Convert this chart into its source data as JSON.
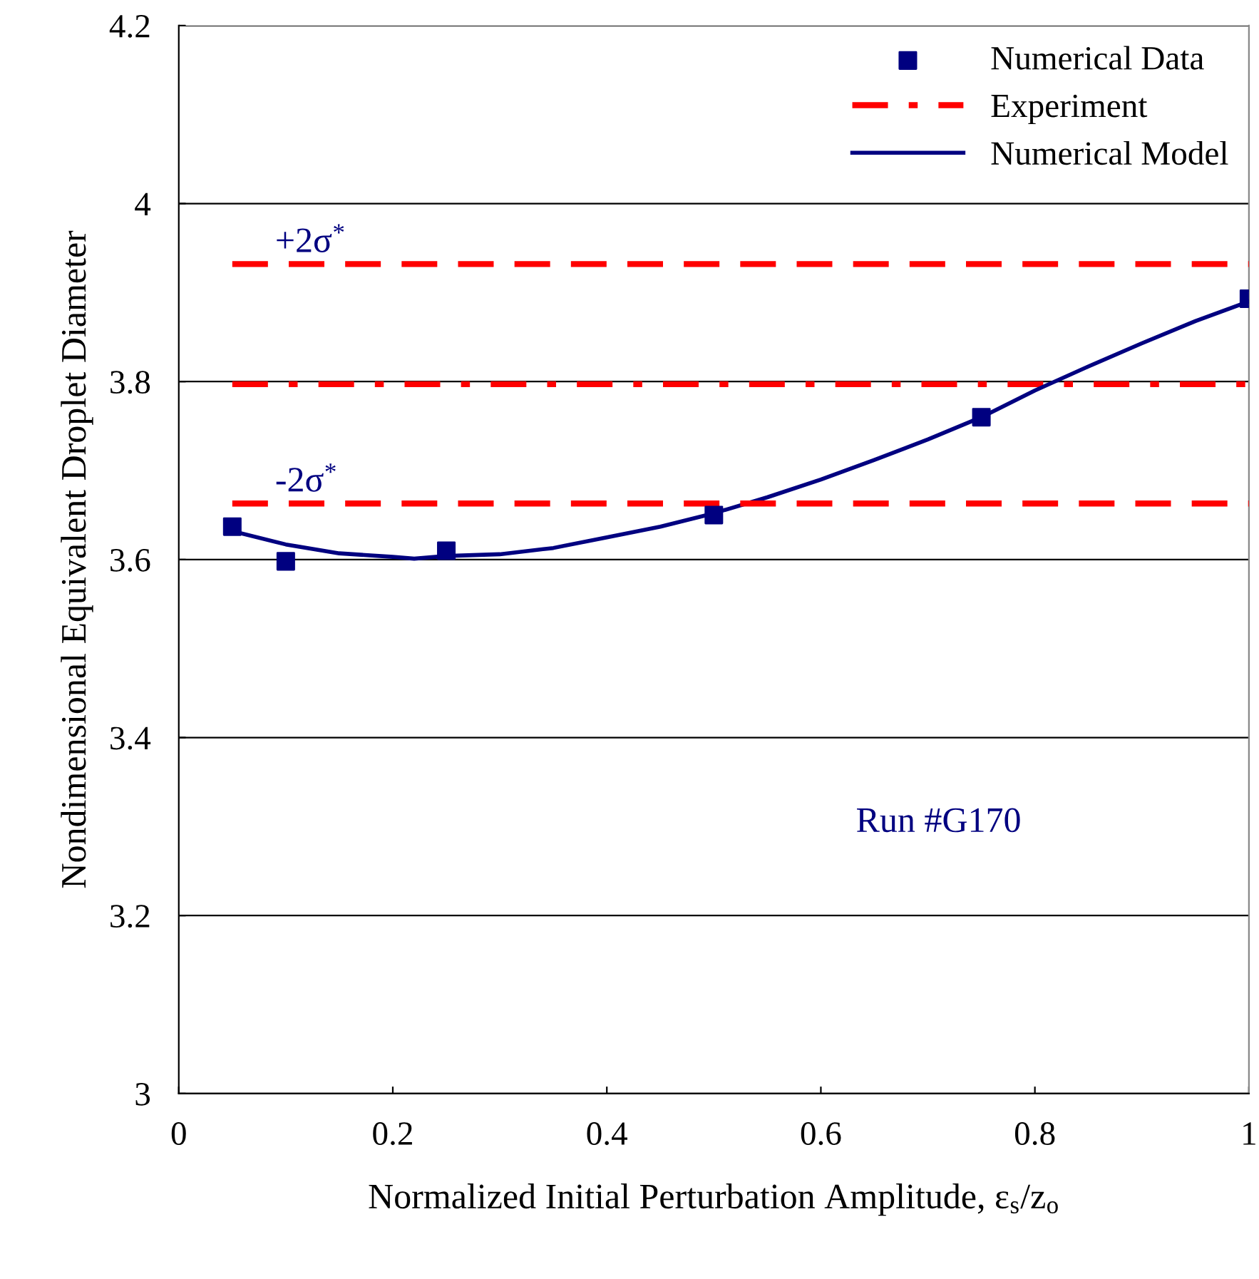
{
  "chart_data": {
    "type": "line",
    "xlabel": "Normalized Initial Perturbation Amplitude, ε$_{s}$/z$_{o}$",
    "ylabel": "Nondimensional Equivalent Droplet Diameter",
    "xlim": [
      0,
      1
    ],
    "xticks": [
      0,
      0.2,
      0.4,
      0.6,
      0.8,
      1
    ],
    "ylim": [
      3,
      4.2
    ],
    "yticks": [
      3,
      3.2,
      3.4,
      3.6,
      3.8,
      4,
      4.2
    ],
    "grid": "y",
    "legend": "top right",
    "series": [
      {
        "name": "Numerical Data",
        "type": "scatter",
        "marker": "square",
        "color": "#000080",
        "x": [
          0.05,
          0.1,
          0.25,
          0.5,
          0.75,
          1.0
        ],
        "values": [
          3.637,
          3.598,
          3.61,
          3.65,
          3.76,
          3.893
        ]
      },
      {
        "name": "Experiment",
        "line_style": "dashdot",
        "color": "#ff0000",
        "x": [
          0.05,
          1.0
        ],
        "values": [
          3.797,
          3.797
        ]
      },
      {
        "name": "Numerical Model",
        "line_style": "solid",
        "color": "#000080",
        "x": [
          0.05,
          0.1,
          0.15,
          0.2,
          0.22,
          0.25,
          0.3,
          0.35,
          0.4,
          0.45,
          0.5,
          0.55,
          0.6,
          0.65,
          0.7,
          0.75,
          0.8,
          0.85,
          0.9,
          0.95,
          1.0
        ],
        "values": [
          3.632,
          3.617,
          3.607,
          3.603,
          3.601,
          3.604,
          3.606,
          3.613,
          3.625,
          3.637,
          3.652,
          3.67,
          3.69,
          3.712,
          3.735,
          3.76,
          3.79,
          3.817,
          3.843,
          3.868,
          3.89
        ]
      },
      {
        "line_style": "dashed",
        "color": "#ff0000",
        "x": [
          0.05,
          1.0
        ],
        "values": [
          3.932,
          3.932
        ]
      },
      {
        "line_style": "dashed",
        "color": "#ff0000",
        "x": [
          0.05,
          1.0
        ],
        "values": [
          3.663,
          3.663
        ]
      }
    ],
    "annotations": [
      {
        "text": "+2σ$^{*}$",
        "x": 0.09,
        "y": 3.932
      },
      {
        "text": "-2σ$^{*}$",
        "x": 0.09,
        "y": 3.663
      },
      "Run #G170"
    ]
  }
}
